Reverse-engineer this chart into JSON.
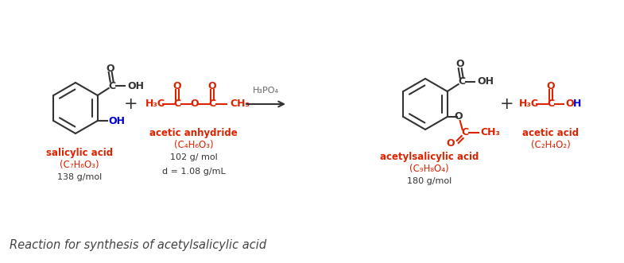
{
  "bg_color": "#ffffff",
  "title": "Reaction for synthesis of acetylsalicylic acid",
  "title_color": "#444444",
  "title_fontsize": 10.5,
  "red_color": "#dd2200",
  "blue_color": "#0000cc",
  "black_color": "#333333",
  "arrow_color": "#333333",
  "labels": {
    "salicylic_name": "salicylic acid",
    "salicylic_formula": "(C₇H₆O₃)",
    "salicylic_mw": "138 g/mol",
    "anhydride_name": "acetic anhydride",
    "anhydride_formula": "(C₄H₆O₃)",
    "anhydride_mw": "102 g/ mol",
    "anhydride_density": "d = 1.08 g/mL",
    "product_name": "acetylsalicylic acid",
    "product_formula": "(C₉H₈O₄)",
    "product_mw": "180 g/mol",
    "acetic_name": "acetic acid",
    "acetic_formula": "(C₂H₄O₂)",
    "catalyst": "H₃PO₄"
  }
}
